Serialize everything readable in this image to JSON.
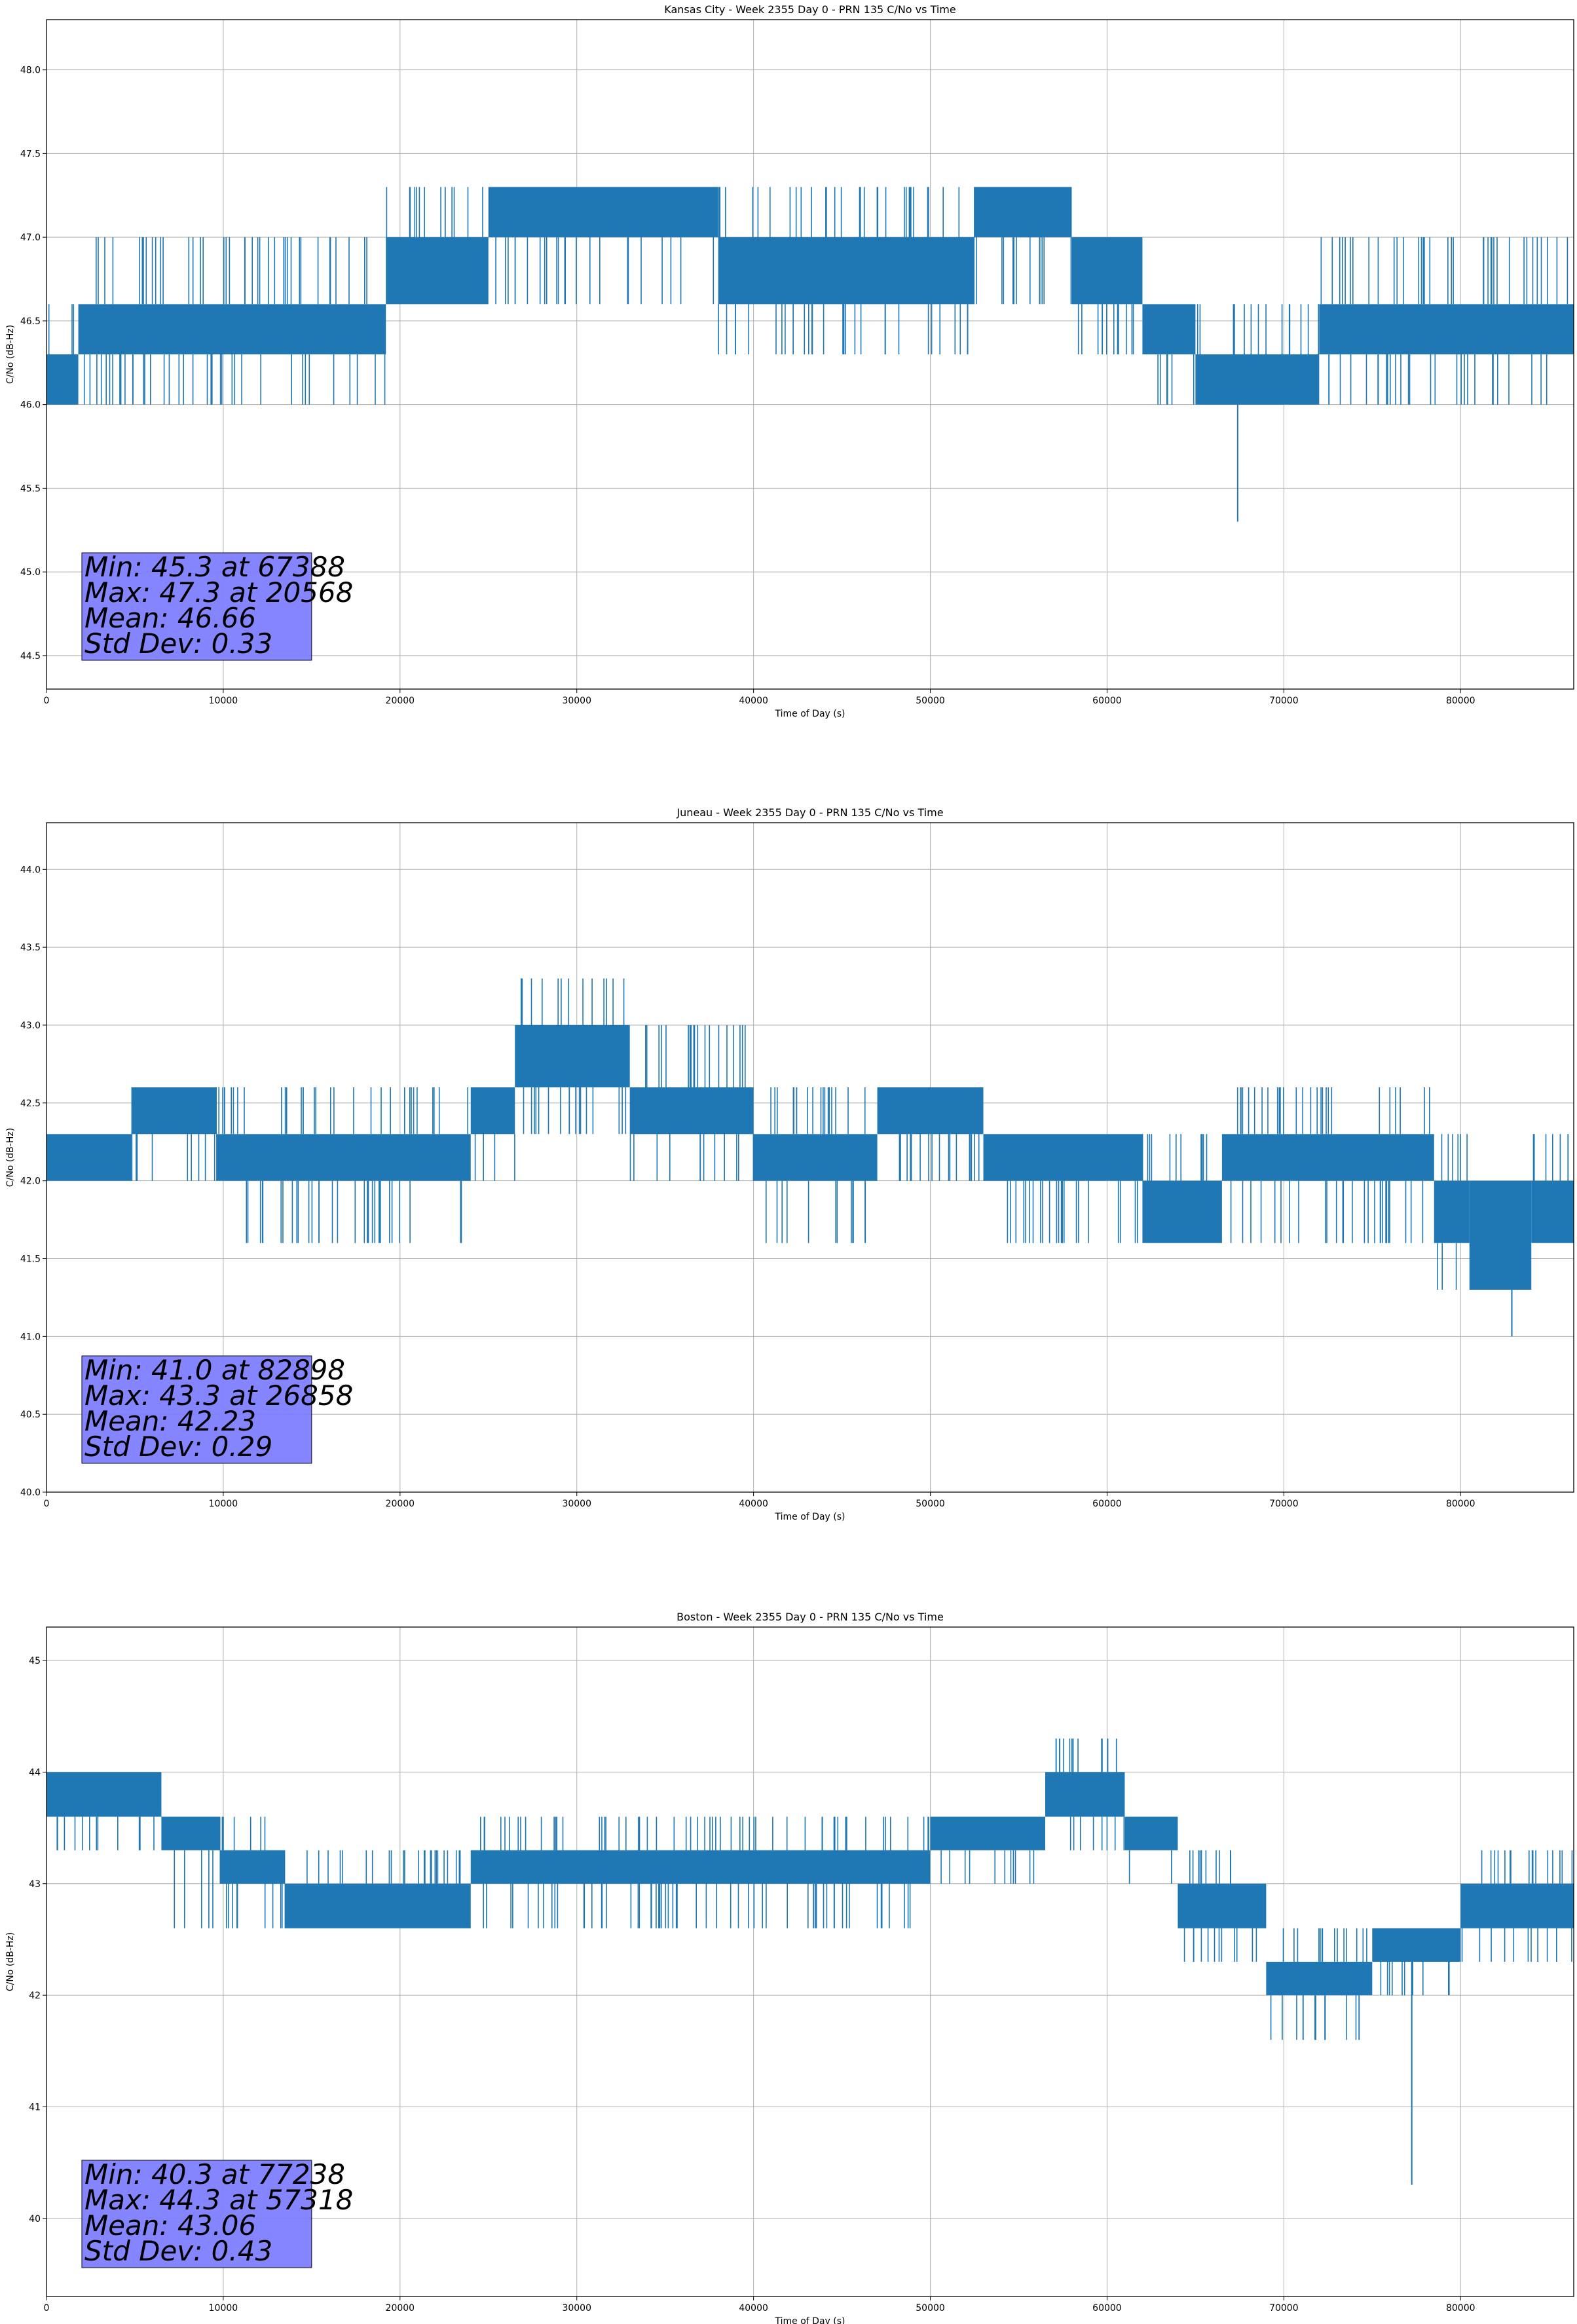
{
  "chart_data": [
    {
      "type": "line",
      "title": "Kansas City - Week 2355 Day 0 - PRN 135 C/No vs Time",
      "xlabel": "Time of Day (s)",
      "ylabel": "C/No (dB-Hz)",
      "xlim": [
        0,
        86400
      ],
      "ylim": [
        44.3,
        48.3
      ],
      "xticks": [
        0,
        10000,
        20000,
        30000,
        40000,
        50000,
        60000,
        70000,
        80000
      ],
      "xtick_labels": [
        "0",
        "10000",
        "20000",
        "30000",
        "40000",
        "50000",
        "60000",
        "70000",
        "80000"
      ],
      "yticks": [
        44.5,
        45.0,
        45.5,
        46.0,
        46.5,
        47.0,
        47.5,
        48.0
      ],
      "ytick_labels": [
        "44.5",
        "45.0",
        "45.5",
        "46.0",
        "46.5",
        "47.0",
        "47.5",
        "48.0"
      ],
      "grid": true,
      "series_color": "#1f77b4",
      "segments": [
        {
          "x0": 0,
          "x1": 1800,
          "lo": 46.0,
          "hi": 46.3,
          "up": 46.6,
          "dn": 46.0
        },
        {
          "x0": 1800,
          "x1": 19200,
          "lo": 46.3,
          "hi": 46.6,
          "up": 47.0,
          "dn": 46.0
        },
        {
          "x0": 19200,
          "x1": 25000,
          "lo": 46.6,
          "hi": 47.0,
          "up": 47.3,
          "dn": 46.6
        },
        {
          "x0": 25000,
          "x1": 38000,
          "lo": 47.0,
          "hi": 47.3,
          "up": 47.3,
          "dn": 46.6
        },
        {
          "x0": 38000,
          "x1": 52500,
          "lo": 46.6,
          "hi": 47.0,
          "up": 47.3,
          "dn": 46.3
        },
        {
          "x0": 52500,
          "x1": 58000,
          "lo": 47.0,
          "hi": 47.3,
          "up": 47.3,
          "dn": 46.6
        },
        {
          "x0": 58000,
          "x1": 62000,
          "lo": 46.6,
          "hi": 47.0,
          "up": 47.0,
          "dn": 46.3
        },
        {
          "x0": 62000,
          "x1": 65000,
          "lo": 46.3,
          "hi": 46.6,
          "up": 46.6,
          "dn": 46.0
        },
        {
          "x0": 65000,
          "x1": 72000,
          "lo": 46.0,
          "hi": 46.3,
          "up": 46.6,
          "dn": 46.0
        },
        {
          "x0": 72000,
          "x1": 86400,
          "lo": 46.3,
          "hi": 46.6,
          "up": 47.0,
          "dn": 46.0
        }
      ],
      "min": {
        "value": 45.3,
        "time": 67388
      },
      "max": {
        "value": 47.3,
        "time": 20568
      },
      "mean": 46.66,
      "std_dev": 0.33,
      "stats_lines": [
        "Min: 45.3 at 67388",
        "Max: 47.3 at 20568",
        "Mean: 46.66",
        "Std Dev: 0.33"
      ],
      "stats_box_color": "#7f7fff"
    },
    {
      "type": "line",
      "title": "Juneau - Week 2355 Day 0 - PRN 135 C/No vs Time",
      "xlabel": "Time of Day (s)",
      "ylabel": "C/No (dB-Hz)",
      "xlim": [
        0,
        86400
      ],
      "ylim": [
        40.0,
        44.3
      ],
      "xticks": [
        0,
        10000,
        20000,
        30000,
        40000,
        50000,
        60000,
        70000,
        80000
      ],
      "xtick_labels": [
        "0",
        "10000",
        "20000",
        "30000",
        "40000",
        "50000",
        "60000",
        "70000",
        "80000"
      ],
      "yticks": [
        40.0,
        40.5,
        41.0,
        41.5,
        42.0,
        42.5,
        43.0,
        43.5,
        44.0
      ],
      "ytick_labels": [
        "40.0",
        "40.5",
        "41.0",
        "41.5",
        "42.0",
        "42.5",
        "43.0",
        "43.5",
        "44.0"
      ],
      "grid": true,
      "series_color": "#1f77b4",
      "segments": [
        {
          "x0": 0,
          "x1": 4800,
          "lo": 42.0,
          "hi": 42.3,
          "up": 42.3,
          "dn": 42.0
        },
        {
          "x0": 4800,
          "x1": 9600,
          "lo": 42.3,
          "hi": 42.6,
          "up": 42.6,
          "dn": 42.0
        },
        {
          "x0": 9600,
          "x1": 24000,
          "lo": 42.0,
          "hi": 42.3,
          "up": 42.6,
          "dn": 41.6
        },
        {
          "x0": 24000,
          "x1": 26500,
          "lo": 42.3,
          "hi": 42.6,
          "up": 42.6,
          "dn": 42.0
        },
        {
          "x0": 26500,
          "x1": 33000,
          "lo": 42.6,
          "hi": 43.0,
          "up": 43.3,
          "dn": 42.3
        },
        {
          "x0": 33000,
          "x1": 40000,
          "lo": 42.3,
          "hi": 42.6,
          "up": 43.0,
          "dn": 42.0
        },
        {
          "x0": 40000,
          "x1": 47000,
          "lo": 42.0,
          "hi": 42.3,
          "up": 42.6,
          "dn": 41.6
        },
        {
          "x0": 47000,
          "x1": 53000,
          "lo": 42.3,
          "hi": 42.6,
          "up": 42.6,
          "dn": 42.0
        },
        {
          "x0": 53000,
          "x1": 62000,
          "lo": 42.0,
          "hi": 42.3,
          "up": 42.3,
          "dn": 41.6
        },
        {
          "x0": 62000,
          "x1": 66500,
          "lo": 41.6,
          "hi": 42.0,
          "up": 42.3,
          "dn": 41.6
        },
        {
          "x0": 66500,
          "x1": 78500,
          "lo": 42.0,
          "hi": 42.3,
          "up": 42.6,
          "dn": 41.6
        },
        {
          "x0": 78500,
          "x1": 80500,
          "lo": 41.6,
          "hi": 42.0,
          "up": 42.3,
          "dn": 41.3
        },
        {
          "x0": 80500,
          "x1": 84000,
          "lo": 41.3,
          "hi": 42.0,
          "up": 42.0,
          "dn": 41.3
        },
        {
          "x0": 84000,
          "x1": 86400,
          "lo": 41.6,
          "hi": 42.0,
          "up": 42.3,
          "dn": 41.6
        }
      ],
      "min": {
        "value": 41.0,
        "time": 82898
      },
      "max": {
        "value": 43.3,
        "time": 26858
      },
      "mean": 42.23,
      "std_dev": 0.29,
      "stats_lines": [
        "Min: 41.0 at 82898",
        "Max: 43.3 at 26858",
        "Mean: 42.23",
        "Std Dev: 0.29"
      ],
      "stats_box_color": "#7f7fff"
    },
    {
      "type": "line",
      "title": "Boston - Week 2355 Day 0 - PRN 135 C/No vs Time",
      "xlabel": "Time of Day (s)",
      "ylabel": "C/No (dB-Hz)",
      "xlim": [
        0,
        86400
      ],
      "ylim": [
        39.3,
        45.3
      ],
      "xticks": [
        0,
        10000,
        20000,
        30000,
        40000,
        50000,
        60000,
        70000,
        80000
      ],
      "xtick_labels": [
        "0",
        "10000",
        "20000",
        "30000",
        "40000",
        "50000",
        "60000",
        "70000",
        "80000"
      ],
      "yticks": [
        40,
        41,
        42,
        43,
        44,
        45
      ],
      "ytick_labels": [
        "40",
        "41",
        "42",
        "43",
        "44",
        "45"
      ],
      "grid": true,
      "series_color": "#1f77b4",
      "segments": [
        {
          "x0": 0,
          "x1": 6500,
          "lo": 43.6,
          "hi": 44.0,
          "up": 44.0,
          "dn": 43.3
        },
        {
          "x0": 6500,
          "x1": 9800,
          "lo": 43.3,
          "hi": 43.6,
          "up": 43.6,
          "dn": 42.6
        },
        {
          "x0": 9800,
          "x1": 13500,
          "lo": 43.0,
          "hi": 43.3,
          "up": 43.6,
          "dn": 42.6
        },
        {
          "x0": 13500,
          "x1": 24000,
          "lo": 42.6,
          "hi": 43.0,
          "up": 43.3,
          "dn": 42.6
        },
        {
          "x0": 24000,
          "x1": 50000,
          "lo": 43.0,
          "hi": 43.3,
          "up": 43.6,
          "dn": 42.6
        },
        {
          "x0": 50000,
          "x1": 56500,
          "lo": 43.3,
          "hi": 43.6,
          "up": 43.6,
          "dn": 43.0
        },
        {
          "x0": 56500,
          "x1": 61000,
          "lo": 43.6,
          "hi": 44.0,
          "up": 44.3,
          "dn": 43.3
        },
        {
          "x0": 61000,
          "x1": 64000,
          "lo": 43.3,
          "hi": 43.6,
          "up": 43.6,
          "dn": 43.0
        },
        {
          "x0": 64000,
          "x1": 69000,
          "lo": 42.6,
          "hi": 43.0,
          "up": 43.3,
          "dn": 42.3
        },
        {
          "x0": 69000,
          "x1": 75000,
          "lo": 42.0,
          "hi": 42.3,
          "up": 42.6,
          "dn": 41.6
        },
        {
          "x0": 75000,
          "x1": 80000,
          "lo": 42.3,
          "hi": 42.6,
          "up": 42.6,
          "dn": 42.0
        },
        {
          "x0": 80000,
          "x1": 86400,
          "lo": 42.6,
          "hi": 43.0,
          "up": 43.3,
          "dn": 42.3
        }
      ],
      "min": {
        "value": 40.3,
        "time": 77238
      },
      "max": {
        "value": 44.3,
        "time": 57318
      },
      "mean": 43.06,
      "std_dev": 0.43,
      "stats_lines": [
        "Min: 40.3 at 77238",
        "Max: 44.3 at 57318",
        "Mean: 43.06",
        "Std Dev: 0.43"
      ],
      "stats_box_color": "#7f7fff"
    }
  ]
}
